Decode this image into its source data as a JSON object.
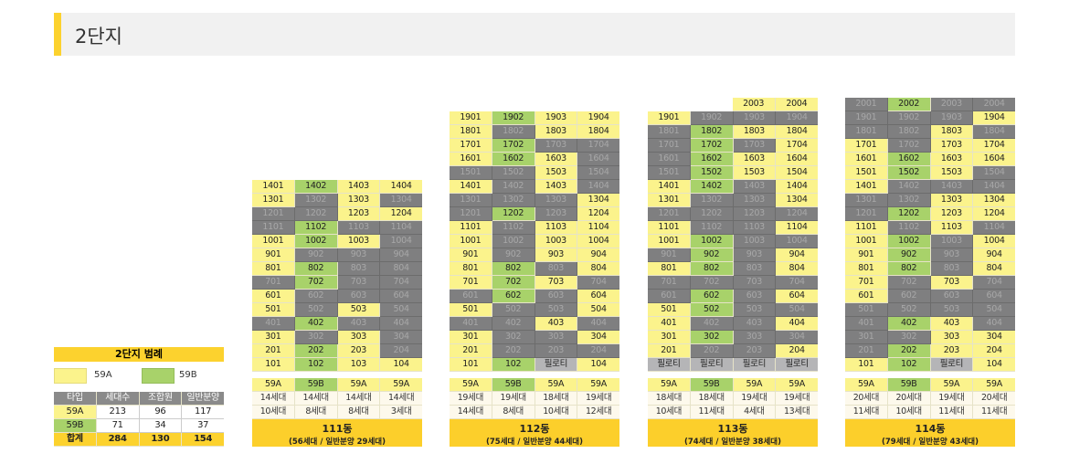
{
  "header": {
    "title": "2단지"
  },
  "type_colors": {
    "Y": "#fbf38c",
    "G": "#a8d26a",
    "D": "#7f7f80",
    "P": "#b5b5b7",
    "accent": "#fcd22e"
  },
  "legend": {
    "title": "2단지 범례",
    "items": [
      {
        "label": "59A",
        "color": "#fbf38c"
      },
      {
        "label": "59B",
        "color": "#a8d26a"
      }
    ],
    "table": {
      "headers": [
        "타입",
        "세대수",
        "조합원",
        "일반분양"
      ],
      "rows": [
        [
          "59A",
          "213",
          "96",
          "117"
        ],
        [
          "59B",
          "71",
          "34",
          "37"
        ],
        [
          "합계",
          "284",
          "130",
          "154"
        ]
      ]
    }
  },
  "buildings": [
    {
      "name": "111동",
      "detail": "(56세대 / 일반분양 29세대)",
      "types": [
        "59A",
        "59B",
        "59A",
        "59A"
      ],
      "units_total": [
        "14세대",
        "14세대",
        "14세대",
        "14세대"
      ],
      "units_general": [
        "10세대",
        "8세대",
        "8세대",
        "3세대"
      ],
      "rows": [
        {
          "units": [
            "1401",
            "1402",
            "1403",
            "1404"
          ],
          "colors": "YGYY"
        },
        {
          "units": [
            "1301",
            "1302",
            "1303",
            "1304"
          ],
          "colors": "YDYD"
        },
        {
          "units": [
            "1201",
            "1202",
            "1203",
            "1204"
          ],
          "colors": "DDYY"
        },
        {
          "units": [
            "1101",
            "1102",
            "1103",
            "1104"
          ],
          "colors": "DGDD"
        },
        {
          "units": [
            "1001",
            "1002",
            "1003",
            "1004"
          ],
          "colors": "YGYD"
        },
        {
          "units": [
            "901",
            "902",
            "903",
            "904"
          ],
          "colors": "YDDD"
        },
        {
          "units": [
            "801",
            "802",
            "803",
            "804"
          ],
          "colors": "YGDD"
        },
        {
          "units": [
            "701",
            "702",
            "703",
            "704"
          ],
          "colors": "DGDD"
        },
        {
          "units": [
            "601",
            "602",
            "603",
            "604"
          ],
          "colors": "YDDD"
        },
        {
          "units": [
            "501",
            "502",
            "503",
            "504"
          ],
          "colors": "YDYD"
        },
        {
          "units": [
            "401",
            "402",
            "403",
            "404"
          ],
          "colors": "DGDD"
        },
        {
          "units": [
            "301",
            "302",
            "303",
            "304"
          ],
          "colors": "YDYD"
        },
        {
          "units": [
            "201",
            "202",
            "203",
            "204"
          ],
          "colors": "YGYD"
        },
        {
          "units": [
            "101",
            "102",
            "103",
            "104"
          ],
          "colors": "YGYY"
        }
      ]
    },
    {
      "name": "112동",
      "detail": "(75세대 / 일반분양 44세대)",
      "types": [
        "59A",
        "59B",
        "59A",
        "59A"
      ],
      "units_total": [
        "19세대",
        "19세대",
        "18세대",
        "19세대"
      ],
      "units_general": [
        "14세대",
        "8세대",
        "10세대",
        "12세대"
      ],
      "rows": [
        {
          "units": [
            "1901",
            "1902",
            "1903",
            "1904"
          ],
          "colors": "YGYY"
        },
        {
          "units": [
            "1801",
            "1802",
            "1803",
            "1804"
          ],
          "colors": "YDYY"
        },
        {
          "units": [
            "1701",
            "1702",
            "1703",
            "1704"
          ],
          "colors": "YGDD"
        },
        {
          "units": [
            "1601",
            "1602",
            "1603",
            "1604"
          ],
          "colors": "YGYD"
        },
        {
          "units": [
            "1501",
            "1502",
            "1503",
            "1504"
          ],
          "colors": "DDYD"
        },
        {
          "units": [
            "1401",
            "1402",
            "1403",
            "1404"
          ],
          "colors": "YDYD"
        },
        {
          "units": [
            "1301",
            "1302",
            "1303",
            "1304"
          ],
          "colors": "DDDY"
        },
        {
          "units": [
            "1201",
            "1202",
            "1203",
            "1204"
          ],
          "colors": "DGDY"
        },
        {
          "units": [
            "1101",
            "1102",
            "1103",
            "1104"
          ],
          "colors": "YDYY"
        },
        {
          "units": [
            "1001",
            "1002",
            "1003",
            "1004"
          ],
          "colors": "YDYY"
        },
        {
          "units": [
            "901",
            "902",
            "903",
            "904"
          ],
          "colors": "YDYY"
        },
        {
          "units": [
            "801",
            "802",
            "803",
            "804"
          ],
          "colors": "YGDY"
        },
        {
          "units": [
            "701",
            "702",
            "703",
            "704"
          ],
          "colors": "YGYD"
        },
        {
          "units": [
            "601",
            "602",
            "603",
            "604"
          ],
          "colors": "DGDY"
        },
        {
          "units": [
            "501",
            "502",
            "503",
            "504"
          ],
          "colors": "YDDY"
        },
        {
          "units": [
            "401",
            "402",
            "403",
            "404"
          ],
          "colors": "DDYD"
        },
        {
          "units": [
            "301",
            "302",
            "303",
            "304"
          ],
          "colors": "YDDY"
        },
        {
          "units": [
            "201",
            "202",
            "203",
            "204"
          ],
          "colors": "YDDD"
        },
        {
          "units": [
            "101",
            "102",
            "필로티",
            "104"
          ],
          "colors": "YGPY"
        }
      ]
    },
    {
      "name": "113동",
      "detail": "(74세대 / 일반분양 38세대)",
      "types": [
        "59A",
        "59B",
        "59A",
        "59A"
      ],
      "units_total": [
        "18세대",
        "18세대",
        "19세대",
        "19세대"
      ],
      "units_general": [
        "10세대",
        "11세대",
        "4세대",
        "13세대"
      ],
      "rows": [
        {
          "units": [
            "",
            "",
            "2003",
            "2004"
          ],
          "colors": "EEYY"
        },
        {
          "units": [
            "1901",
            "1902",
            "1903",
            "1904"
          ],
          "colors": "YDDD"
        },
        {
          "units": [
            "1801",
            "1802",
            "1803",
            "1804"
          ],
          "colors": "DGYY"
        },
        {
          "units": [
            "1701",
            "1702",
            "1703",
            "1704"
          ],
          "colors": "DGDY"
        },
        {
          "units": [
            "1601",
            "1602",
            "1603",
            "1604"
          ],
          "colors": "DGYY"
        },
        {
          "units": [
            "1501",
            "1502",
            "1503",
            "1504"
          ],
          "colors": "DGYY"
        },
        {
          "units": [
            "1401",
            "1402",
            "1403",
            "1404"
          ],
          "colors": "YGDY"
        },
        {
          "units": [
            "1301",
            "1302",
            "1303",
            "1304"
          ],
          "colors": "YDDY"
        },
        {
          "units": [
            "1201",
            "1202",
            "1203",
            "1204"
          ],
          "colors": "DDDD"
        },
        {
          "units": [
            "1101",
            "1102",
            "1103",
            "1104"
          ],
          "colors": "YDDY"
        },
        {
          "units": [
            "1001",
            "1002",
            "1003",
            "1004"
          ],
          "colors": "YGDD"
        },
        {
          "units": [
            "901",
            "902",
            "903",
            "904"
          ],
          "colors": "DGDY"
        },
        {
          "units": [
            "801",
            "802",
            "803",
            "804"
          ],
          "colors": "YGDY"
        },
        {
          "units": [
            "701",
            "702",
            "703",
            "704"
          ],
          "colors": "DDDD"
        },
        {
          "units": [
            "601",
            "602",
            "603",
            "604"
          ],
          "colors": "DGDY"
        },
        {
          "units": [
            "501",
            "502",
            "503",
            "504"
          ],
          "colors": "YGDD"
        },
        {
          "units": [
            "401",
            "402",
            "403",
            "404"
          ],
          "colors": "YDDY"
        },
        {
          "units": [
            "301",
            "302",
            "303",
            "304"
          ],
          "colors": "YGDD"
        },
        {
          "units": [
            "201",
            "202",
            "203",
            "204"
          ],
          "colors": "YDDY"
        },
        {
          "units": [
            "필로티",
            "필로티",
            "필로티",
            "필로티"
          ],
          "colors": "PPPP"
        }
      ]
    },
    {
      "name": "114동",
      "detail": "(79세대 / 일반분양 43세대)",
      "types": [
        "59A",
        "59B",
        "59A",
        "59A"
      ],
      "units_total": [
        "20세대",
        "20세대",
        "19세대",
        "20세대"
      ],
      "units_general": [
        "11세대",
        "10세대",
        "11세대",
        "11세대"
      ],
      "rows": [
        {
          "units": [
            "2001",
            "2002",
            "2003",
            "2004"
          ],
          "colors": "DGDD"
        },
        {
          "units": [
            "1901",
            "1902",
            "1903",
            "1904"
          ],
          "colors": "DDDY"
        },
        {
          "units": [
            "1801",
            "1802",
            "1803",
            "1804"
          ],
          "colors": "DDYD"
        },
        {
          "units": [
            "1701",
            "1702",
            "1703",
            "1704"
          ],
          "colors": "YDYY"
        },
        {
          "units": [
            "1601",
            "1602",
            "1603",
            "1604"
          ],
          "colors": "YGYY"
        },
        {
          "units": [
            "1501",
            "1502",
            "1503",
            "1504"
          ],
          "colors": "YGYD"
        },
        {
          "units": [
            "1401",
            "1402",
            "1403",
            "1404"
          ],
          "colors": "YDDD"
        },
        {
          "units": [
            "1301",
            "1302",
            "1303",
            "1304"
          ],
          "colors": "DDYY"
        },
        {
          "units": [
            "1201",
            "1202",
            "1203",
            "1204"
          ],
          "colors": "DGYY"
        },
        {
          "units": [
            "1101",
            "1102",
            "1103",
            "1104"
          ],
          "colors": "YDYD"
        },
        {
          "units": [
            "1001",
            "1002",
            "1003",
            "1004"
          ],
          "colors": "YGDY"
        },
        {
          "units": [
            "901",
            "902",
            "903",
            "904"
          ],
          "colors": "YGDY"
        },
        {
          "units": [
            "801",
            "802",
            "803",
            "804"
          ],
          "colors": "YGDY"
        },
        {
          "units": [
            "701",
            "702",
            "703",
            "704"
          ],
          "colors": "YDYD"
        },
        {
          "units": [
            "601",
            "602",
            "603",
            "604"
          ],
          "colors": "YDDD"
        },
        {
          "units": [
            "501",
            "502",
            "503",
            "504"
          ],
          "colors": "DDDD"
        },
        {
          "units": [
            "401",
            "402",
            "403",
            "404"
          ],
          "colors": "DGYD"
        },
        {
          "units": [
            "301",
            "302",
            "303",
            "304"
          ],
          "colors": "DDYY"
        },
        {
          "units": [
            "201",
            "202",
            "203",
            "204"
          ],
          "colors": "DGYY"
        },
        {
          "units": [
            "101",
            "102",
            "필로티",
            "104"
          ],
          "colors": "YGPY"
        }
      ]
    }
  ]
}
